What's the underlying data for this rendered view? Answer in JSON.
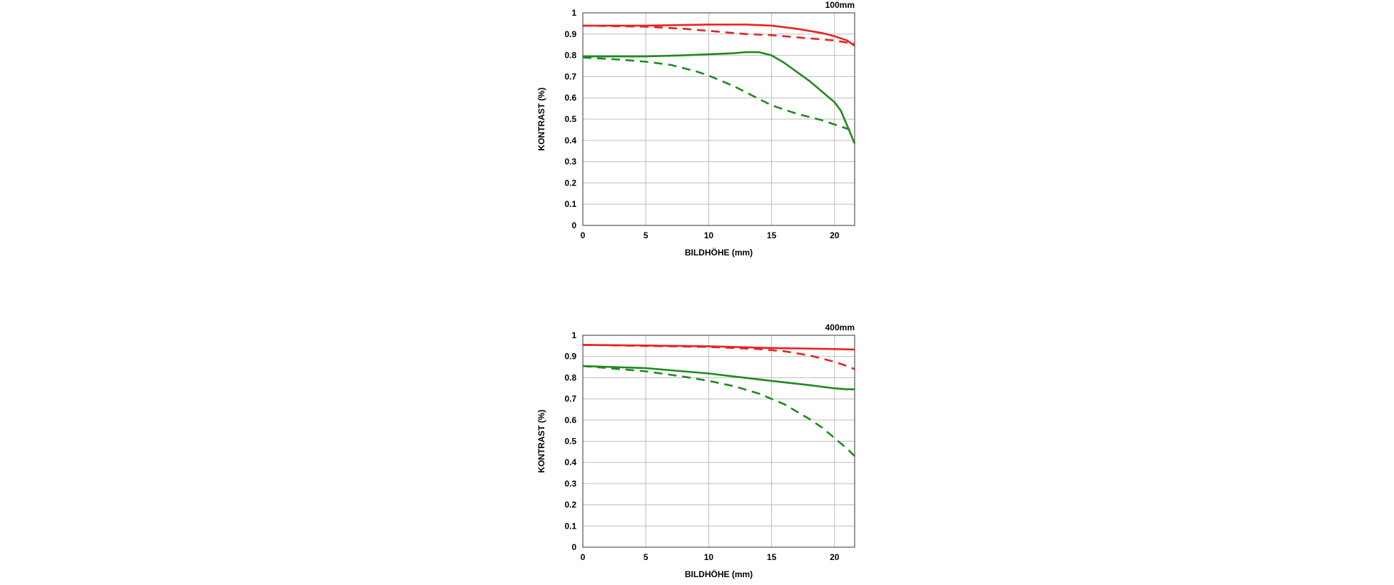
{
  "chart_data": [
    {
      "type": "line",
      "title": "100mm",
      "xlabel": "BILDHÖHE (mm)",
      "ylabel": "KONTRAST (%)",
      "xlim": [
        0,
        21.6
      ],
      "ylim": [
        0,
        1
      ],
      "xticks": [
        0,
        5,
        10,
        15,
        20
      ],
      "yticks": [
        0,
        0.1,
        0.2,
        0.3,
        0.4,
        0.5,
        0.6,
        0.7,
        0.8,
        0.9,
        1
      ],
      "ytick_labels": [
        "0",
        "0.1",
        "0.2",
        "0.3",
        "0.4",
        "0.5",
        "0.6",
        "0.7",
        "0.8",
        "0.9",
        "1"
      ],
      "grid": true,
      "series": [
        {
          "color": "#e52421",
          "style": "solid",
          "x": [
            0,
            5,
            10,
            13,
            15,
            17,
            19,
            20,
            21,
            21.6
          ],
          "y": [
            0.94,
            0.94,
            0.945,
            0.945,
            0.94,
            0.925,
            0.905,
            0.89,
            0.87,
            0.845
          ]
        },
        {
          "color": "#e52421",
          "style": "dashed",
          "x": [
            0,
            5,
            8,
            10,
            13,
            15,
            18,
            20,
            21,
            21.6
          ],
          "y": [
            0.94,
            0.935,
            0.925,
            0.915,
            0.9,
            0.895,
            0.88,
            0.87,
            0.86,
            0.855
          ]
        },
        {
          "color": "#1e8a1e",
          "style": "solid",
          "x": [
            0,
            5,
            8,
            10,
            12,
            13,
            14,
            15,
            16,
            18,
            20,
            20.5,
            21,
            21.6
          ],
          "y": [
            0.795,
            0.795,
            0.8,
            0.805,
            0.81,
            0.815,
            0.815,
            0.8,
            0.765,
            0.68,
            0.58,
            0.54,
            0.47,
            0.385
          ]
        },
        {
          "color": "#1e8a1e",
          "style": "dashed",
          "x": [
            0,
            3,
            5,
            7,
            9,
            10,
            12,
            14,
            15,
            17,
            19,
            20,
            21,
            21.6
          ],
          "y": [
            0.79,
            0.78,
            0.77,
            0.755,
            0.725,
            0.705,
            0.655,
            0.595,
            0.565,
            0.525,
            0.495,
            0.475,
            0.455,
            0.44
          ]
        }
      ]
    },
    {
      "type": "line",
      "title": "400mm",
      "xlabel": "BILDHÖHE (mm)",
      "ylabel": "KONTRAST (%)",
      "xlim": [
        0,
        21.6
      ],
      "ylim": [
        0,
        1
      ],
      "xticks": [
        0,
        5,
        10,
        15,
        20
      ],
      "yticks": [
        0,
        0.1,
        0.2,
        0.3,
        0.4,
        0.5,
        0.6,
        0.7,
        0.8,
        0.9,
        1
      ],
      "ytick_labels": [
        "0",
        "0.1",
        "0.2",
        "0.3",
        "0.4",
        "0.5",
        "0.6",
        "0.7",
        "0.8",
        "0.9",
        "1"
      ],
      "grid": true,
      "series": [
        {
          "color": "#e52421",
          "style": "solid",
          "x": [
            0,
            5,
            10,
            15,
            20,
            21.6
          ],
          "y": [
            0.955,
            0.952,
            0.948,
            0.94,
            0.935,
            0.933
          ]
        },
        {
          "color": "#e52421",
          "style": "dashed",
          "x": [
            0,
            5,
            10,
            14,
            16,
            18,
            20,
            21,
            21.6
          ],
          "y": [
            0.955,
            0.95,
            0.945,
            0.935,
            0.925,
            0.905,
            0.875,
            0.855,
            0.84
          ]
        },
        {
          "color": "#1e8a1e",
          "style": "solid",
          "x": [
            0,
            5,
            10,
            15,
            18,
            20,
            21,
            21.6
          ],
          "y": [
            0.855,
            0.845,
            0.82,
            0.785,
            0.765,
            0.75,
            0.745,
            0.745
          ]
        },
        {
          "color": "#1e8a1e",
          "style": "dashed",
          "x": [
            0,
            3,
            5,
            8,
            10,
            12,
            14,
            16,
            18,
            19,
            20,
            21,
            21.6
          ],
          "y": [
            0.855,
            0.84,
            0.83,
            0.805,
            0.785,
            0.76,
            0.725,
            0.675,
            0.605,
            0.565,
            0.515,
            0.465,
            0.43
          ]
        }
      ]
    }
  ]
}
